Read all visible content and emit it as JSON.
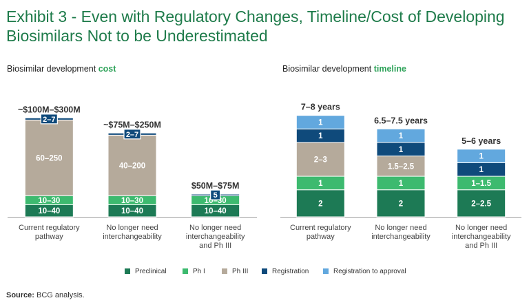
{
  "title_line1": "Exhibit 3 - Even with Regulatory Changes, Timeline/Cost of Developing",
  "title_line2": "Biosimilars Not to be Underestimated",
  "colors": {
    "Preclinical": "#1d7a55",
    "Ph I": "#3dba6f",
    "Ph III": "#b5aa9b",
    "Registration": "#0f4a7b",
    "Registration to approval": "#62a8de"
  },
  "legend": [
    "Preclinical",
    "Ph I",
    "Ph III",
    "Registration",
    "Registration to approval"
  ],
  "source_label": "Source:",
  "source_text": "BCG analysis.",
  "chart_data": [
    {
      "type": "bar",
      "stacked": true,
      "title_prefix": "Biosimilar development ",
      "title_highlight": "cost",
      "categories": [
        [
          "Current regulatory",
          "pathway"
        ],
        [
          "No longer need",
          "interchangeability"
        ],
        [
          "No longer need",
          "interchangeability",
          "and Ph III"
        ]
      ],
      "ylim": [
        0,
        380
      ],
      "totals": [
        "~$100M–$300M",
        "~$75M–$250M",
        "$50M–$75M"
      ],
      "series": [
        {
          "name": "Preclinical",
          "values": [
            40,
            40,
            40
          ],
          "labels": [
            "10–40",
            "10–40",
            "10–40"
          ]
        },
        {
          "name": "Ph I",
          "values": [
            30,
            30,
            30
          ],
          "labels": [
            "10–30",
            "10–30",
            "10–30"
          ]
        },
        {
          "name": "Ph III",
          "values": [
            250,
            200,
            0
          ],
          "labels": [
            "60–250",
            "40–200",
            ""
          ]
        },
        {
          "name": "Registration",
          "values": [
            7,
            7,
            5
          ],
          "labels": [
            "2–7",
            "2–7",
            "5"
          ],
          "boxed": true
        }
      ]
    },
    {
      "type": "bar",
      "stacked": true,
      "title_prefix": "Biosimilar development ",
      "title_highlight": "timeline",
      "categories": [
        [
          "Current regulatory",
          "pathway"
        ],
        [
          "No longer need",
          "interchangeability"
        ],
        [
          "No longer need",
          "interchangeability",
          "and Ph III"
        ]
      ],
      "ylim": [
        0,
        8.5
      ],
      "totals": [
        "7–8 years",
        "6.5–7.5 years",
        "5–6 years"
      ],
      "series": [
        {
          "name": "Preclinical",
          "values": [
            2,
            2,
            2
          ],
          "labels": [
            "2",
            "2",
            "2–2.5"
          ]
        },
        {
          "name": "Ph I",
          "values": [
            1,
            1,
            1
          ],
          "labels": [
            "1",
            "1",
            "1–1.5"
          ]
        },
        {
          "name": "Ph III",
          "values": [
            2.5,
            1.5,
            0
          ],
          "labels": [
            "2–3",
            "1.5–2.5",
            ""
          ]
        },
        {
          "name": "Registration",
          "values": [
            1,
            1,
            1
          ],
          "labels": [
            "1",
            "1",
            "1"
          ]
        },
        {
          "name": "Registration to approval",
          "values": [
            1,
            1,
            1
          ],
          "labels": [
            "1",
            "1",
            "1"
          ]
        }
      ]
    }
  ]
}
